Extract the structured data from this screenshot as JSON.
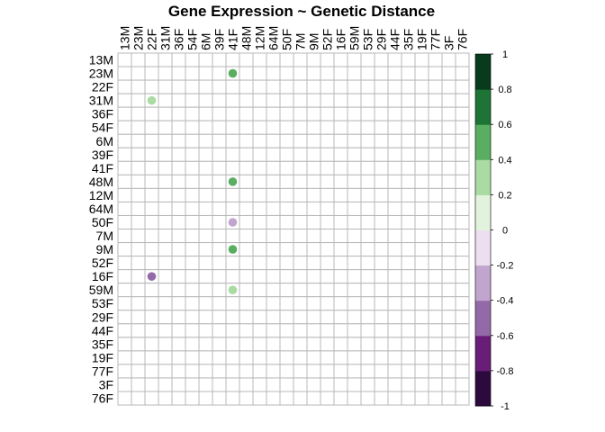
{
  "chart_data": {
    "type": "heatmap",
    "title": "Gene Expression ~ Genetic Distance",
    "columns": [
      "13M",
      "23M",
      "22F",
      "31M",
      "36F",
      "54F",
      "6M",
      "39F",
      "41F",
      "48M",
      "12M",
      "64M",
      "50F",
      "7M",
      "9M",
      "52F",
      "16F",
      "59M",
      "53F",
      "29F",
      "44F",
      "35F",
      "19F",
      "77F",
      "3F",
      "76F"
    ],
    "rows": [
      "13M",
      "23M",
      "22F",
      "31M",
      "36F",
      "54F",
      "6M",
      "39F",
      "41F",
      "48M",
      "12M",
      "64M",
      "50F",
      "7M",
      "9M",
      "52F",
      "16F",
      "59M",
      "53F",
      "29F",
      "44F",
      "35F",
      "19F",
      "77F",
      "3F",
      "76F"
    ],
    "points": [
      {
        "row": "23M",
        "col": "41F",
        "value": 0.5
      },
      {
        "row": "31M",
        "col": "22F",
        "value": 0.3
      },
      {
        "row": "48M",
        "col": "41F",
        "value": 0.5
      },
      {
        "row": "50F",
        "col": "41F",
        "value": -0.3
      },
      {
        "row": "9M",
        "col": "41F",
        "value": 0.5
      },
      {
        "row": "16F",
        "col": "22F",
        "value": -0.5
      },
      {
        "row": "59M",
        "col": "41F",
        "value": 0.3
      }
    ],
    "colorbar": {
      "range": [
        -1,
        1
      ],
      "ticks": [
        "1",
        "0.8",
        "0.6",
        "0.4",
        "0.2",
        "0",
        "-0.2",
        "-0.4",
        "-0.6",
        "-0.8",
        "-1"
      ],
      "colors": [
        "#2d0a3e",
        "#6a1d78",
        "#9469a8",
        "#c2a5cf",
        "#ecdff0",
        "#e1f3dd",
        "#a9dba2",
        "#5aae61",
        "#1e7436",
        "#083a1c"
      ]
    },
    "grid": true
  }
}
